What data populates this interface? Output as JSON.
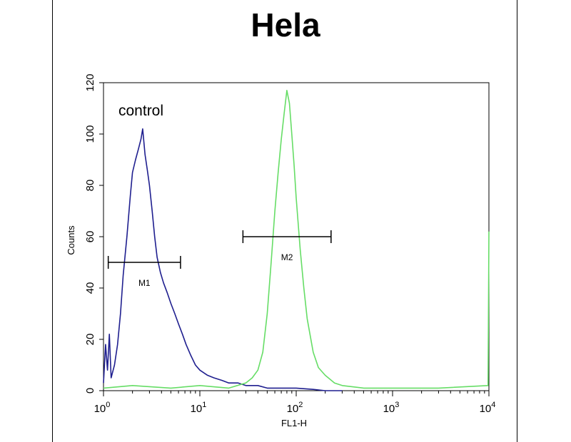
{
  "chart_data": {
    "type": "line",
    "title": "Hela",
    "xlabel": "FL1-H",
    "ylabel": "Counts",
    "xscale": "log",
    "xlim": [
      1,
      10000
    ],
    "ylim": [
      0,
      120
    ],
    "x_ticks": [
      {
        "value": 1,
        "base": "10",
        "exp": "0"
      },
      {
        "value": 10,
        "base": "10",
        "exp": "1"
      },
      {
        "value": 100,
        "base": "10",
        "exp": "2"
      },
      {
        "value": 1000,
        "base": "10",
        "exp": "3"
      },
      {
        "value": 10000,
        "base": "10",
        "exp": "4"
      }
    ],
    "y_ticks": [
      "0",
      "20",
      "40",
      "60",
      "80",
      "100",
      "120"
    ],
    "annotation": "control",
    "colors": {
      "control": "#1f1f8f",
      "sample": "#66dd66"
    },
    "series": [
      {
        "x": [
          1.0,
          1.05,
          1.1,
          1.15,
          1.2,
          1.3,
          1.4,
          1.5,
          1.6,
          1.75,
          1.9,
          2.0,
          2.15,
          2.3,
          2.45,
          2.55,
          2.7,
          2.85,
          3.0,
          3.2,
          3.4,
          3.6,
          3.9,
          4.2,
          4.6,
          5.0,
          5.5,
          6.0,
          6.6,
          7.2,
          8.0,
          9.0,
          10,
          12,
          14,
          17,
          20,
          25,
          30,
          40,
          50,
          70,
          100,
          150,
          200,
          300
        ],
        "y": [
          3,
          18,
          8,
          22,
          5,
          10,
          18,
          30,
          45,
          60,
          76,
          85,
          90,
          94,
          98,
          102,
          92,
          86,
          80,
          70,
          60,
          52,
          46,
          42,
          38,
          34,
          30,
          26,
          22,
          18,
          14,
          10,
          8,
          6,
          5,
          4,
          3,
          3,
          2,
          2,
          1,
          1,
          1,
          0.5,
          0,
          0
        ]
      },
      {
        "x": [
          1,
          2,
          5,
          10,
          20,
          30,
          35,
          40,
          45,
          50,
          55,
          60,
          65,
          70,
          75,
          80,
          85,
          90,
          95,
          100,
          110,
          120,
          130,
          150,
          170,
          200,
          250,
          300,
          500,
          1000,
          3000,
          9800,
          10000
        ],
        "y": [
          1,
          2,
          1,
          2,
          1,
          3,
          5,
          8,
          15,
          30,
          50,
          70,
          85,
          98,
          108,
          117,
          112,
          100,
          88,
          75,
          55,
          40,
          28,
          15,
          9,
          6,
          3,
          2,
          1,
          1,
          1,
          2,
          62
        ]
      }
    ],
    "markers": [
      {
        "label": "M1",
        "x_start": 1.12,
        "x_end": 6.3,
        "y": 50
      },
      {
        "label": "M2",
        "x_start": 28,
        "x_end": 230,
        "y": 60
      }
    ]
  }
}
